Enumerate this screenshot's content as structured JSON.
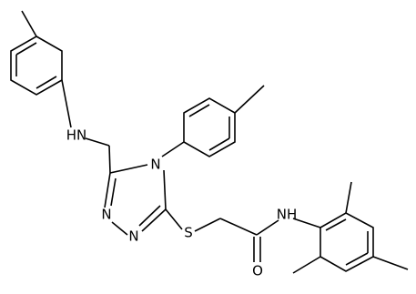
{
  "atoms": {
    "amine_nh": "HN",
    "triazole_n4": "N",
    "triazole_n1": "N",
    "triazole_n2": "N",
    "sulfur": "S",
    "oxygen": "O",
    "amide_nh": "NH"
  }
}
